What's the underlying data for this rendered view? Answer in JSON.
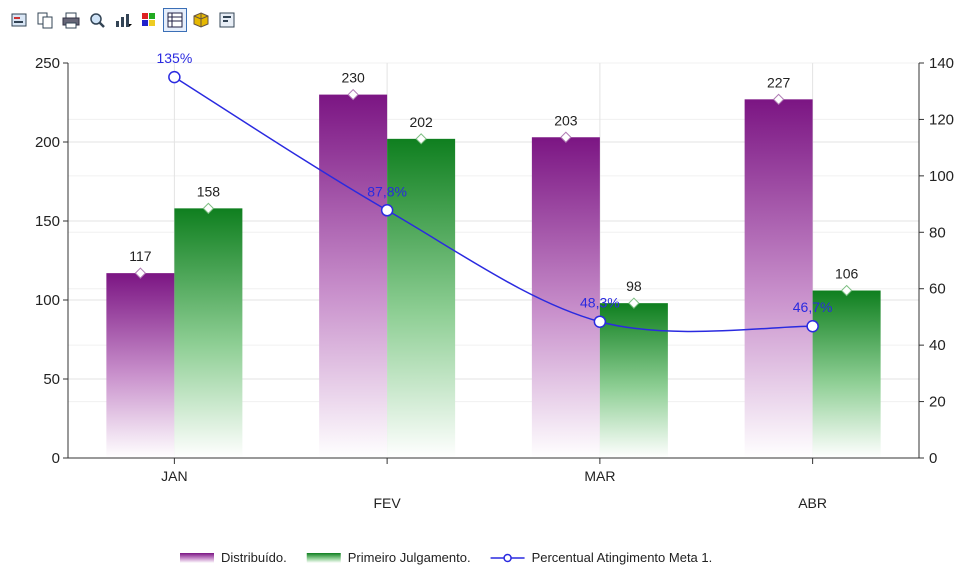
{
  "toolbar": {
    "buttons": [
      {
        "name": "properties-icon"
      },
      {
        "name": "copy-icon"
      },
      {
        "name": "print-icon"
      },
      {
        "name": "zoom-icon"
      },
      {
        "name": "chart-type-icon"
      },
      {
        "name": "palette-icon"
      },
      {
        "name": "data-grid-icon",
        "active": true
      },
      {
        "name": "3d-icon"
      },
      {
        "name": "settings-icon"
      }
    ]
  },
  "chart_data": {
    "type": "bar",
    "categories": [
      "JAN",
      "FEV",
      "MAR",
      "ABR"
    ],
    "series": [
      {
        "name": "Distribuído.",
        "type": "bar",
        "axis": "left",
        "color": "#7b1583",
        "values": [
          117,
          230,
          203,
          227
        ],
        "labels": [
          "117",
          "230",
          "203",
          "227"
        ]
      },
      {
        "name": "Primeiro Julgamento.",
        "type": "bar",
        "axis": "left",
        "color": "#0f7f1f",
        "values": [
          158,
          202,
          98,
          106
        ],
        "labels": [
          "158",
          "202",
          "98",
          "106"
        ]
      },
      {
        "name": "Percentual Atingimento Meta 1.",
        "type": "line",
        "axis": "right",
        "color": "#2a2ae0",
        "values": [
          135,
          87.8,
          48.3,
          46.7
        ],
        "labels": [
          "135%",
          "87,8%",
          "48,3%",
          "46,7%"
        ]
      }
    ],
    "y_left": {
      "min": 0,
      "max": 250,
      "ticks": [
        "0",
        "50",
        "100",
        "150",
        "200",
        "250"
      ]
    },
    "y_right": {
      "min": 0,
      "max": 140,
      "ticks": [
        "0",
        "20",
        "40",
        "60",
        "80",
        "100",
        "120",
        "140"
      ]
    },
    "grid": true,
    "legend_position": "bottom"
  }
}
